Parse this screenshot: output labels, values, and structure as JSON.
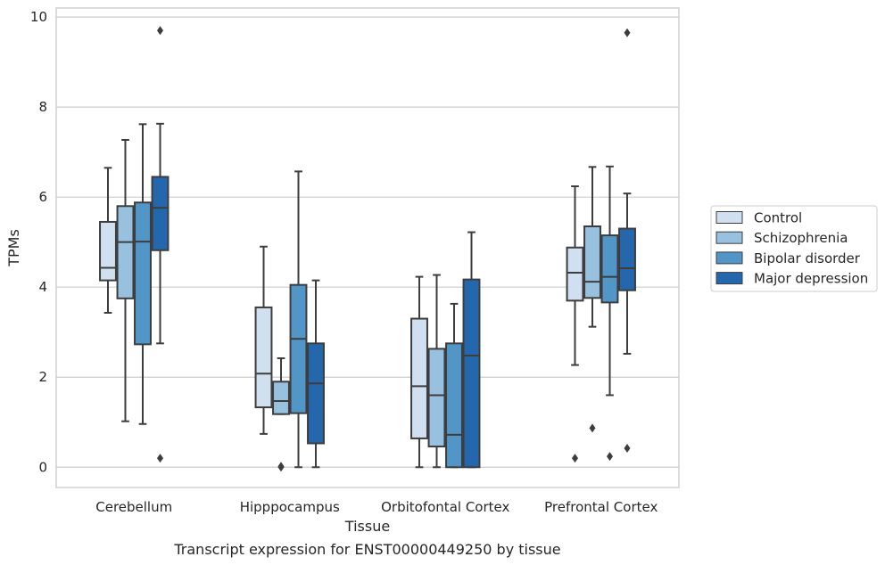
{
  "chart_data": {
    "type": "box",
    "caption": "Transcript expression for ENST00000449250 by tissue",
    "xlabel": "Tissue",
    "ylabel": "TPMs",
    "ylim": [
      -0.45,
      10.2
    ],
    "yticks": [
      "0",
      "2",
      "4",
      "6",
      "8",
      "10"
    ],
    "categories": [
      "Cerebellum",
      "Hipppocampus",
      "Orbitofontal Cortex",
      "Prefrontal Cortex"
    ],
    "grid": true,
    "legend_position": "right",
    "series": [
      {
        "name": "Control",
        "color": "#d0e0f0",
        "boxes": [
          {
            "whislo": 3.43,
            "q1": 4.15,
            "med": 4.43,
            "q3": 5.45,
            "whishi": 6.65,
            "fliers": []
          },
          {
            "whislo": 0.74,
            "q1": 1.33,
            "med": 2.08,
            "q3": 3.55,
            "whishi": 4.9,
            "fliers": []
          },
          {
            "whislo": 0.0,
            "q1": 0.64,
            "med": 1.8,
            "q3": 3.3,
            "whishi": 4.23,
            "fliers": []
          },
          {
            "whislo": 2.27,
            "q1": 3.7,
            "med": 4.32,
            "q3": 4.88,
            "whishi": 6.24,
            "fliers": [
              0.2
            ]
          }
        ]
      },
      {
        "name": "Schizophrenia",
        "color": "#97c1de",
        "boxes": [
          {
            "whislo": 1.02,
            "q1": 3.75,
            "med": 5.0,
            "q3": 5.8,
            "whishi": 7.27,
            "fliers": []
          },
          {
            "whislo": 1.18,
            "q1": 1.18,
            "med": 1.47,
            "q3": 1.9,
            "whishi": 2.42,
            "fliers": [
              0.0,
              0.02
            ]
          },
          {
            "whislo": 0.0,
            "q1": 0.46,
            "med": 1.6,
            "q3": 2.63,
            "whishi": 4.27,
            "fliers": []
          },
          {
            "whislo": 3.12,
            "q1": 3.76,
            "med": 4.12,
            "q3": 5.35,
            "whishi": 6.67,
            "fliers": [
              0.87
            ]
          }
        ]
      },
      {
        "name": "Bipolar disorder",
        "color": "#5296c8",
        "boxes": [
          {
            "whislo": 0.96,
            "q1": 2.73,
            "med": 5.01,
            "q3": 5.88,
            "whishi": 7.62,
            "fliers": []
          },
          {
            "whislo": 0.0,
            "q1": 1.2,
            "med": 2.85,
            "q3": 4.05,
            "whishi": 6.57,
            "fliers": []
          },
          {
            "whislo": 0.0,
            "q1": 0.0,
            "med": 0.72,
            "q3": 2.75,
            "whishi": 3.63,
            "fliers": []
          },
          {
            "whislo": 1.6,
            "q1": 3.66,
            "med": 4.23,
            "q3": 5.15,
            "whishi": 6.68,
            "fliers": [
              0.24
            ]
          }
        ]
      },
      {
        "name": "Major depression",
        "color": "#2567ac",
        "boxes": [
          {
            "whislo": 2.75,
            "q1": 4.82,
            "med": 5.76,
            "q3": 6.45,
            "whishi": 7.63,
            "fliers": [
              9.7,
              0.2
            ]
          },
          {
            "whislo": 0.0,
            "q1": 0.53,
            "med": 1.86,
            "q3": 2.75,
            "whishi": 4.15,
            "fliers": []
          },
          {
            "whislo": 0.0,
            "q1": 0.0,
            "med": 2.48,
            "q3": 4.17,
            "whishi": 5.22,
            "fliers": []
          },
          {
            "whislo": 2.52,
            "q1": 3.93,
            "med": 4.42,
            "q3": 5.3,
            "whishi": 6.08,
            "fliers": [
              9.65,
              0.42
            ]
          }
        ]
      }
    ]
  }
}
